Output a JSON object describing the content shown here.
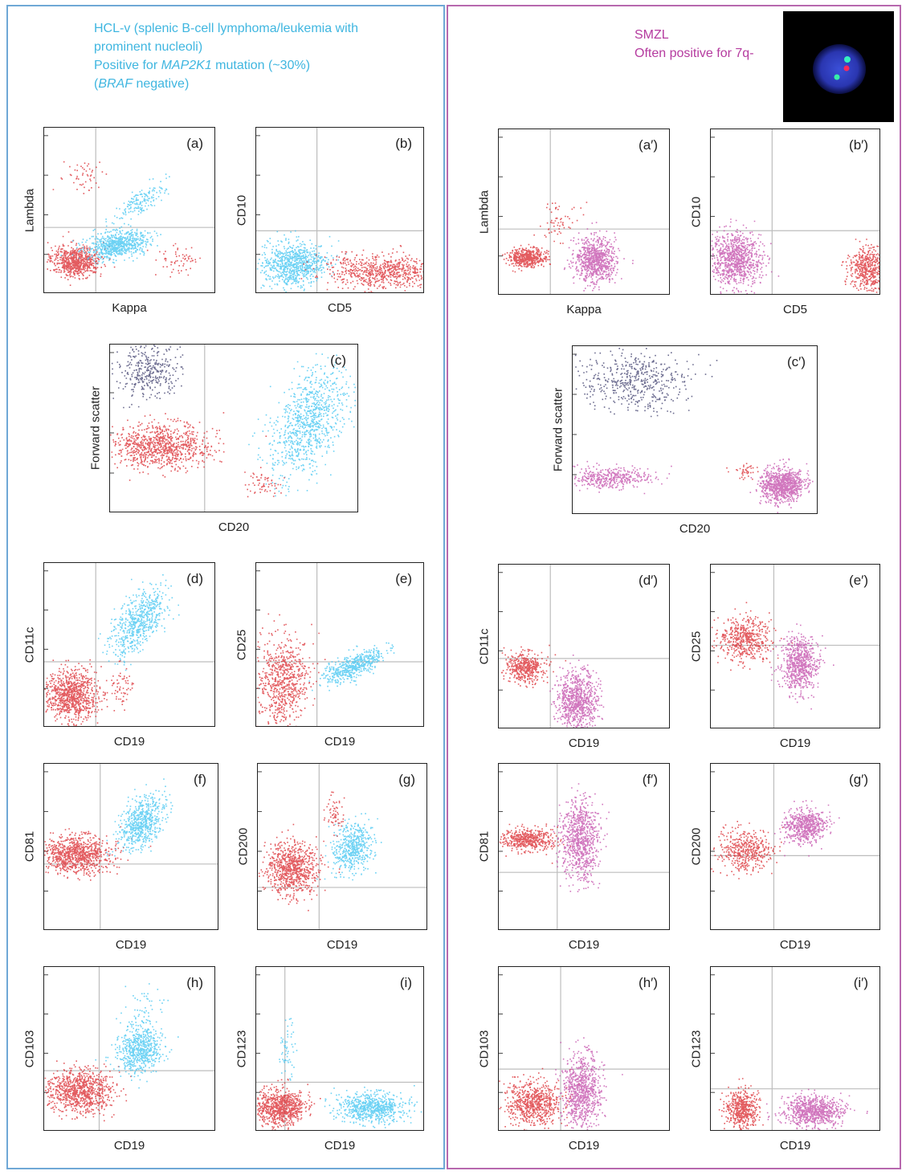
{
  "header_left": {
    "line1": "HCL-v (splenic B-cell lymphoma/leukemia with",
    "line2": "prominent nucleoli)",
    "line3_pre": "Positive for ",
    "line3_gene": "MAP2K1",
    "line3_post": " mutation (~30%)",
    "line4_open": "(",
    "line4_gene": "BRAF",
    "line4_post": " negative)"
  },
  "header_right": {
    "line1": "SMZL",
    "line2": "Often positive for 7q-"
  },
  "colors": {
    "hcl_cells": "#3cc3f0",
    "smzl_cells": "#c24aa8",
    "other_cells": "#d9262b",
    "granulocytes": "#3a3a6a",
    "left_border": "#6fa8d6",
    "right_border": "#b768ae"
  },
  "fish_image": {
    "icon": "fish-nucleus-icon"
  },
  "plots": [
    {
      "tag": "(a)",
      "x": "Kappa",
      "y": "Lambda"
    },
    {
      "tag": "(b)",
      "x": "CD5",
      "y": "CD10"
    },
    {
      "tag": "(c)",
      "x": "CD20",
      "y": "Forward scatter"
    },
    {
      "tag": "(d)",
      "x": "CD19",
      "y": "CD11c"
    },
    {
      "tag": "(e)",
      "x": "CD19",
      "y": "CD25"
    },
    {
      "tag": "(f)",
      "x": "CD19",
      "y": "CD81"
    },
    {
      "tag": "(g)",
      "x": "CD19",
      "y": "CD200"
    },
    {
      "tag": "(h)",
      "x": "CD19",
      "y": "CD103"
    },
    {
      "tag": "(i)",
      "x": "CD19",
      "y": "CD123"
    },
    {
      "tag": "(a′)",
      "x": "Kappa",
      "y": "Lambda"
    },
    {
      "tag": "(b′)",
      "x": "CD5",
      "y": "CD10"
    },
    {
      "tag": "(c′)",
      "x": "CD20",
      "y": "Forward scatter"
    },
    {
      "tag": "(d′)",
      "x": "CD19",
      "y": "CD11c"
    },
    {
      "tag": "(e′)",
      "x": "CD19",
      "y": "CD25"
    },
    {
      "tag": "(f′)",
      "x": "CD19",
      "y": "CD81"
    },
    {
      "tag": "(g′)",
      "x": "CD19",
      "y": "CD200"
    },
    {
      "tag": "(h′)",
      "x": "CD19",
      "y": "CD103"
    },
    {
      "tag": "(i′)",
      "x": "CD19",
      "y": "CD123"
    }
  ]
}
